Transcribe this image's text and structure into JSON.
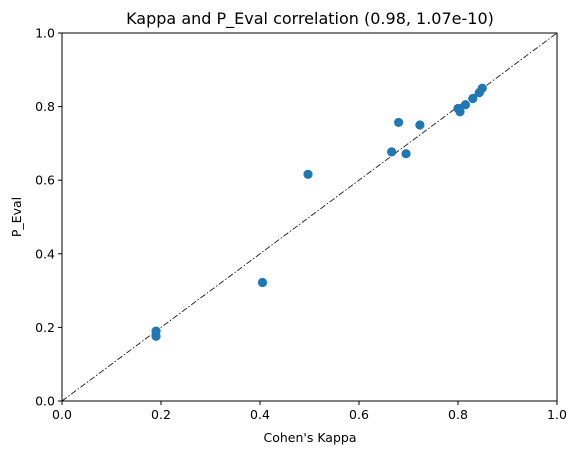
{
  "chart_data": {
    "type": "scatter",
    "title": "Kappa and P_Eval correlation (0.98, 1.07e-10)",
    "xlabel": "Cohen's Kappa",
    "ylabel": "P_Eval",
    "xlim": [
      0.0,
      1.0
    ],
    "ylim": [
      0.0,
      1.0
    ],
    "xticks": [
      "0.0",
      "0.2",
      "0.4",
      "0.6",
      "0.8",
      "1.0"
    ],
    "yticks": [
      "0.0",
      "0.2",
      "0.4",
      "0.6",
      "0.8",
      "1.0"
    ],
    "grid": false,
    "legend": "none",
    "reference_line": {
      "from": [
        0,
        0
      ],
      "to": [
        1,
        1
      ],
      "style": "dash-dot",
      "color": "#000000"
    },
    "marker_color": "#1f77b4",
    "points": [
      {
        "x": 0.19,
        "y": 0.19
      },
      {
        "x": 0.19,
        "y": 0.176
      },
      {
        "x": 0.405,
        "y": 0.322
      },
      {
        "x": 0.497,
        "y": 0.616
      },
      {
        "x": 0.666,
        "y": 0.677
      },
      {
        "x": 0.68,
        "y": 0.757
      },
      {
        "x": 0.695,
        "y": 0.672
      },
      {
        "x": 0.723,
        "y": 0.75
      },
      {
        "x": 0.8,
        "y": 0.795
      },
      {
        "x": 0.804,
        "y": 0.786
      },
      {
        "x": 0.815,
        "y": 0.805
      },
      {
        "x": 0.83,
        "y": 0.822
      },
      {
        "x": 0.843,
        "y": 0.838
      },
      {
        "x": 0.849,
        "y": 0.85
      }
    ]
  }
}
